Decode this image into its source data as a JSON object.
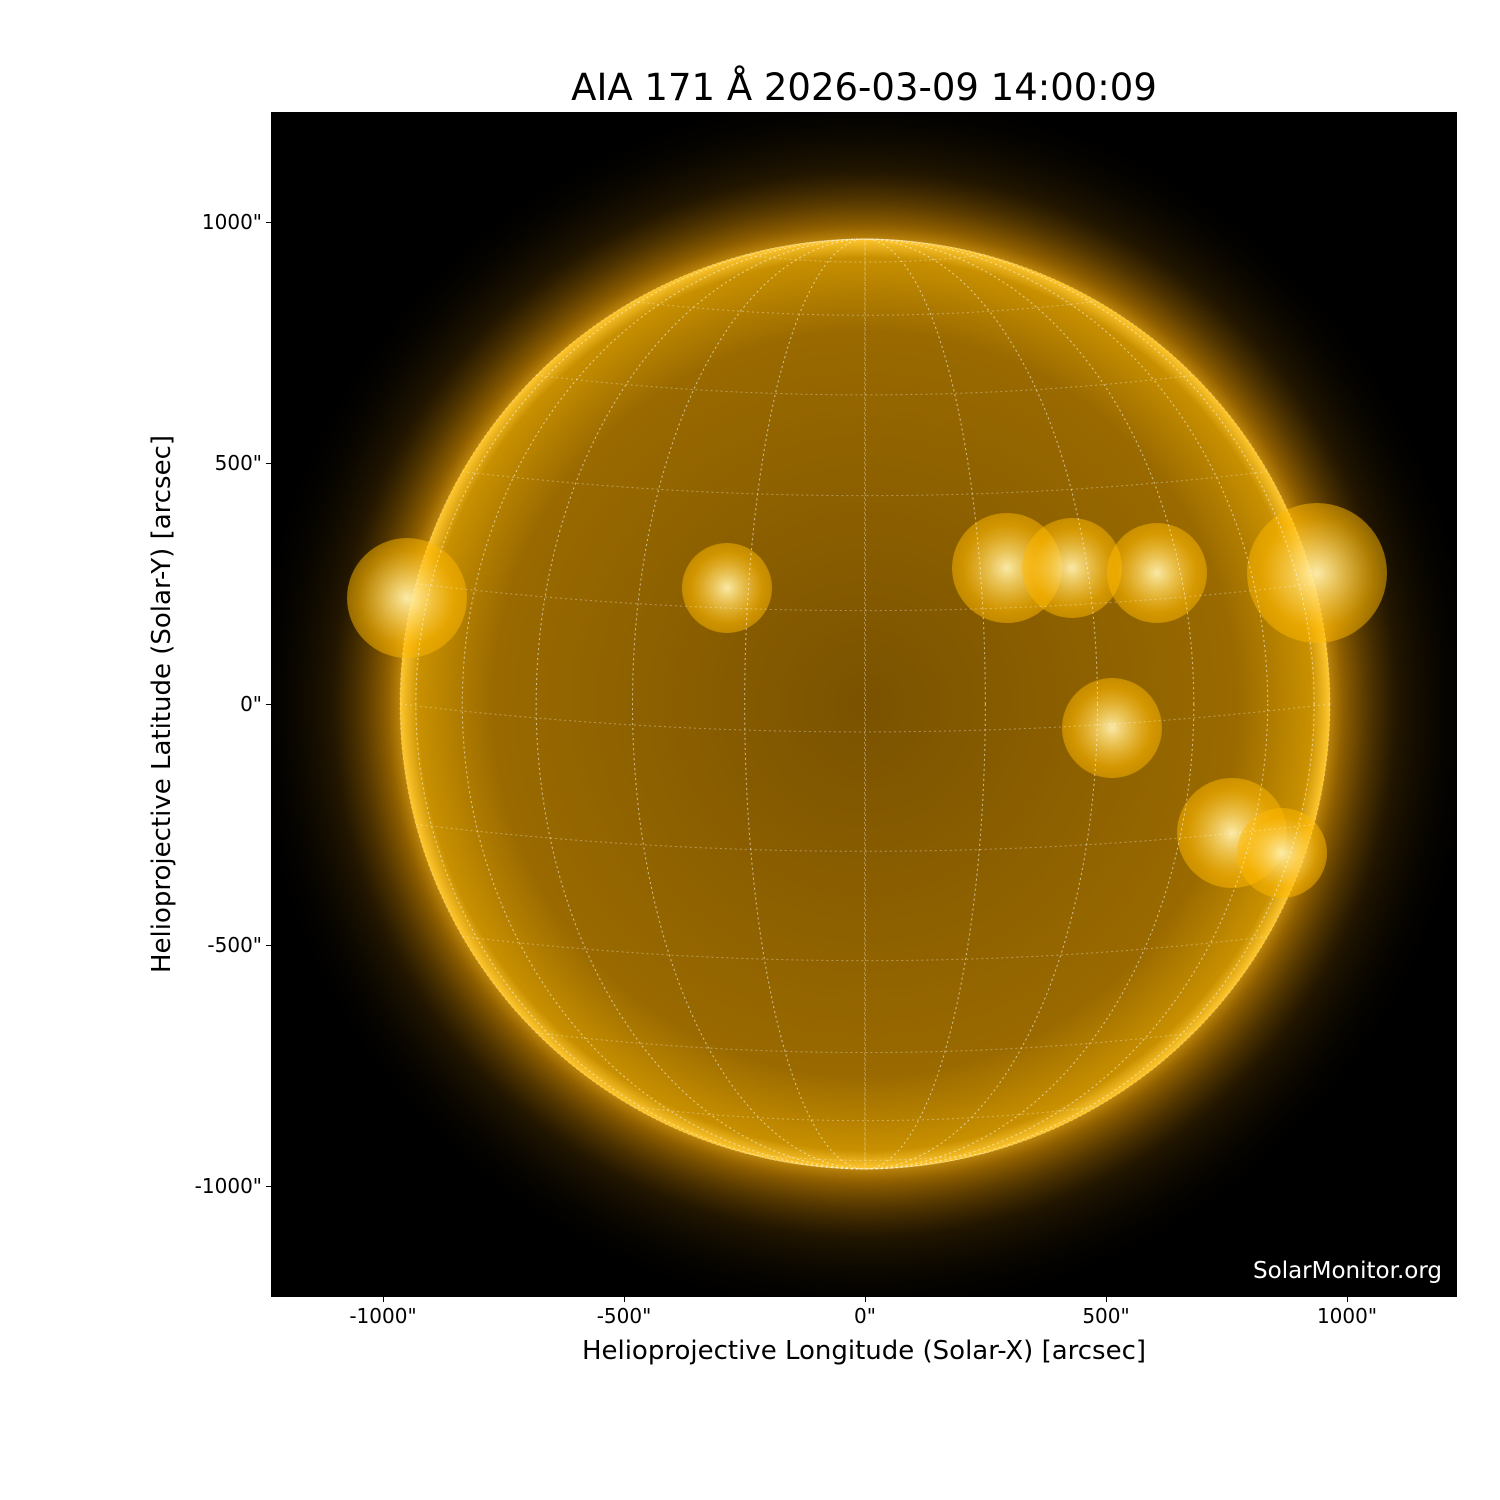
{
  "title": "AIA 171 Å 2026-03-09 14:00:09",
  "xlabel": "Helioprojective Longitude (Solar-X) [arcsec]",
  "ylabel": "Helioprojective Latitude (Solar-Y) [arcsec]",
  "watermark": "SolarMonitor.org",
  "xticks": [
    "-1000\"",
    "-500\"",
    "0\"",
    "500\"",
    "1000\""
  ],
  "yticks": [
    "1000\"",
    "500\"",
    "0\"",
    "-500\"",
    "-1000\""
  ],
  "xtick_values": [
    -1000,
    -500,
    0,
    500,
    1000
  ],
  "ytick_values": [
    1000,
    500,
    0,
    -500,
    -1000
  ],
  "colors": {
    "disk": "#c88a00",
    "corona": "#ffb000",
    "background": "#000000"
  }
}
